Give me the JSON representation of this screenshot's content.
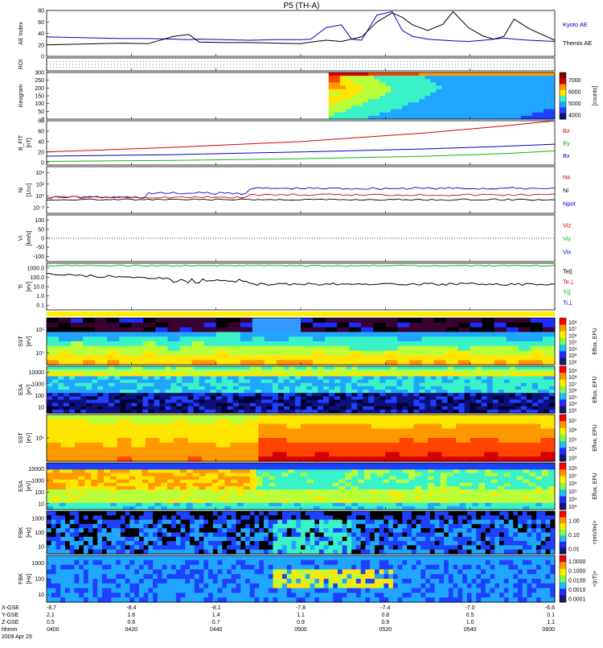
{
  "title": "P5 (TH-A)",
  "colors": {
    "blue": "#0000cc",
    "red": "#d40000",
    "green": "#10b810",
    "black": "#000000",
    "bg": "#ffffff"
  },
  "chart_data": [
    {
      "type": "line",
      "panel": "ae",
      "ylabel": "AE Index",
      "ylim": [
        0,
        80
      ],
      "yticks": [
        {
          "v": 80,
          "t": "80"
        },
        {
          "v": 60,
          "t": "60"
        },
        {
          "v": 40,
          "t": "40"
        },
        {
          "v": 20,
          "t": "20"
        },
        {
          "v": 0,
          "t": "0"
        }
      ],
      "legend": [
        {
          "name": "Kyoto AE",
          "color": "#0000cc"
        },
        {
          "name": "Themis AE",
          "color": "#000000"
        }
      ],
      "x": [
        0,
        0.05,
        0.1,
        0.15,
        0.2,
        0.25,
        0.28,
        0.3,
        0.35,
        0.4,
        0.45,
        0.5,
        0.52,
        0.55,
        0.58,
        0.6,
        0.62,
        0.65,
        0.68,
        0.7,
        0.72,
        0.75,
        0.78,
        0.8,
        0.83,
        0.86,
        0.88,
        0.9,
        0.92,
        0.95,
        1.0
      ],
      "series": [
        {
          "name": "Kyoto AE",
          "color": "#0000cc",
          "values": [
            34,
            33,
            32,
            31,
            31,
            30,
            29,
            30,
            29,
            28,
            29,
            29,
            30,
            50,
            55,
            30,
            28,
            72,
            78,
            45,
            35,
            30,
            28,
            27,
            26,
            28,
            30,
            32,
            30,
            28,
            26
          ]
        },
        {
          "name": "Themis AE",
          "color": "#000000",
          "values": [
            20,
            21,
            22,
            23,
            22,
            35,
            38,
            25,
            24,
            24,
            23,
            22,
            25,
            28,
            26,
            30,
            34,
            60,
            76,
            68,
            55,
            45,
            56,
            78,
            50,
            35,
            30,
            35,
            65,
            48,
            28
          ]
        }
      ]
    },
    {
      "type": "line",
      "panel": "roi",
      "ylabel": "ROI"
    },
    {
      "type": "heatmap",
      "panel": "keogram",
      "ylabel": "Keogram",
      "ylim": [
        0,
        300
      ],
      "yticks": [
        {
          "v": 300,
          "t": "300"
        },
        {
          "v": 250,
          "t": "250"
        },
        {
          "v": 200,
          "t": "200"
        },
        {
          "v": 150,
          "t": "150"
        },
        {
          "v": 100,
          "t": "100"
        },
        {
          "v": 50,
          "t": "50"
        },
        {
          "v": 0,
          "t": "0"
        }
      ],
      "colorbar": {
        "label": "[counts]",
        "ticks": [
          "7000",
          "6000",
          "5000",
          "4000"
        ]
      }
    },
    {
      "type": "line",
      "panel": "bfield",
      "ylabel": "B_FIT",
      "ylabel2": "[nT]",
      "ylim": [
        -5,
        80
      ],
      "yticks": [
        {
          "v": 80,
          "t": "80"
        },
        {
          "v": 60,
          "t": "60"
        },
        {
          "v": 40,
          "t": "40"
        },
        {
          "v": 20,
          "t": "20"
        },
        {
          "v": 0,
          "t": "0"
        }
      ],
      "legend": [
        {
          "name": "Bz",
          "color": "#d40000"
        },
        {
          "name": "By",
          "color": "#10b810"
        },
        {
          "name": "Bx",
          "color": "#0000cc"
        }
      ],
      "x": [
        0,
        0.25,
        0.5,
        0.75,
        0.9,
        1.0
      ],
      "series": [
        {
          "name": "Bz",
          "color": "#d40000",
          "values": [
            20,
            29,
            40,
            57,
            70,
            80
          ]
        },
        {
          "name": "By",
          "color": "#10b810",
          "values": [
            2,
            4,
            7,
            12,
            17,
            22
          ]
        },
        {
          "name": "Bx",
          "color": "#0000cc",
          "values": [
            12,
            15,
            20,
            26,
            31,
            35
          ]
        }
      ]
    },
    {
      "type": "line",
      "panel": "density",
      "ylabel": "Ni",
      "ylabel2": "[1/cc]",
      "yticks": [
        {
          "t": "10⁴"
        },
        {
          "t": "10²"
        },
        {
          "t": "10⁰"
        },
        {
          "t": "10⁻²"
        }
      ],
      "legend": [
        {
          "name": "Ne",
          "color": "#d40000"
        },
        {
          "name": "Ni",
          "color": "#000000"
        },
        {
          "name": "Npot",
          "color": "#0000cc"
        }
      ]
    },
    {
      "type": "line",
      "panel": "velocity",
      "ylabel": "Vi",
      "ylabel2": "[km/s]",
      "ylim": [
        -130,
        130
      ],
      "yticks": [
        {
          "v": 100,
          "t": "100"
        },
        {
          "v": 50,
          "t": "50"
        },
        {
          "v": 0,
          "t": "0"
        },
        {
          "v": -50,
          "t": "-50"
        },
        {
          "v": -100,
          "t": "-100"
        }
      ],
      "legend": [
        {
          "name": "Viz",
          "color": "#d40000"
        },
        {
          "name": "Viy",
          "color": "#10b810"
        },
        {
          "name": "Vix",
          "color": "#0000cc"
        }
      ]
    },
    {
      "type": "line",
      "panel": "temperature",
      "ylabel": "Ti",
      "ylabel2": "[eV]",
      "yticks": [
        {
          "t": "1000.0"
        },
        {
          "t": "100.0"
        },
        {
          "t": "10.0"
        },
        {
          "t": "1.0"
        },
        {
          "t": "0.1"
        }
      ],
      "legend": [
        {
          "name": "Te||",
          "color": "#000000"
        },
        {
          "name": "Te⊥",
          "color": "#d40000"
        },
        {
          "name": "Ti||",
          "color": "#10b810"
        },
        {
          "name": "Ti⊥",
          "color": "#0000cc"
        }
      ]
    },
    {
      "type": "heatmap",
      "panel": "sst_e",
      "ylabel": "SST",
      "ylabel2": "[eV]",
      "yticks": [
        {
          "t": "10⁶"
        },
        {
          "t": "10⁵"
        }
      ],
      "colorbar": {
        "label": "Eflux, EFU",
        "ticks": [
          "10⁸",
          "10⁷",
          "10⁶",
          "10⁵",
          "10⁴",
          "10³",
          "10²"
        ]
      }
    },
    {
      "type": "heatmap",
      "panel": "esa_e",
      "ylabel": "ESA",
      "ylabel2": "[eV]",
      "yticks": [
        {
          "t": "10000"
        },
        {
          "t": "1000"
        },
        {
          "t": "100"
        },
        {
          "t": "10"
        }
      ],
      "colorbar": {
        "label": "Eflux, EFU",
        "ticks": [
          "10⁹",
          "10⁸",
          "10⁷",
          "10⁶",
          "10⁵",
          "10⁴",
          "10³"
        ]
      }
    },
    {
      "type": "heatmap",
      "panel": "sst_i",
      "ylabel": "SST",
      "ylabel2": "[eV]",
      "yticks": [
        {
          "t": "10⁵"
        }
      ],
      "colorbar": {
        "label": "Eflux, EFU",
        "ticks": [
          "10⁷",
          "10⁶",
          "10⁵",
          "10⁴",
          "10³"
        ]
      }
    },
    {
      "type": "heatmap",
      "panel": "esa_i",
      "ylabel": "ESA",
      "ylabel2": "[eV]",
      "yticks": [
        {
          "t": "10000"
        },
        {
          "t": "1000"
        },
        {
          "t": "100"
        },
        {
          "t": "10"
        }
      ],
      "colorbar": {
        "label": "Eflux, EFU",
        "ticks": [
          "10⁸",
          "10⁷",
          "10⁶",
          "10⁵",
          "10⁴",
          "10³"
        ]
      }
    },
    {
      "type": "heatmap",
      "panel": "fbk_e",
      "ylabel": "FBK",
      "ylabel2": "[Hz]",
      "yticks": [
        {
          "t": "1000"
        },
        {
          "t": "100"
        },
        {
          "t": "10"
        }
      ],
      "colorbar": {
        "label": "<|mV/m|>",
        "ticks": [
          "1.00",
          "0.10",
          "0.01"
        ]
      }
    },
    {
      "type": "heatmap",
      "panel": "fbk_b",
      "ylabel": "FBK",
      "ylabel2": "[Hz]",
      "yticks": [
        {
          "t": "1000"
        },
        {
          "t": "100"
        },
        {
          "t": "10"
        }
      ],
      "colorbar": {
        "label": "<|nT|>",
        "ticks": [
          "1.0000",
          "0.1000",
          "0.0100",
          "0.0010",
          "0.0001"
        ]
      }
    }
  ],
  "footer": {
    "labels": [
      "X-GSE",
      "Y-GSE",
      "Z-GSE",
      "hhmm",
      "2009 Apr 29"
    ],
    "columns": [
      [
        "-8.7",
        "2.1",
        "0.5",
        "0400"
      ],
      [
        "-8.4",
        "1.6",
        "0.6",
        "0420"
      ],
      [
        "-8.1",
        "1.4",
        "0.7",
        "0440"
      ],
      [
        "-7.8",
        "1.1",
        "0.9",
        "0500"
      ],
      [
        "-7.4",
        "0.8",
        "0.9",
        "0520"
      ],
      [
        "-7.0",
        "0.5",
        "1.0",
        "0540"
      ],
      [
        "-6.6",
        "0.1",
        "1.1",
        "0600"
      ]
    ]
  }
}
